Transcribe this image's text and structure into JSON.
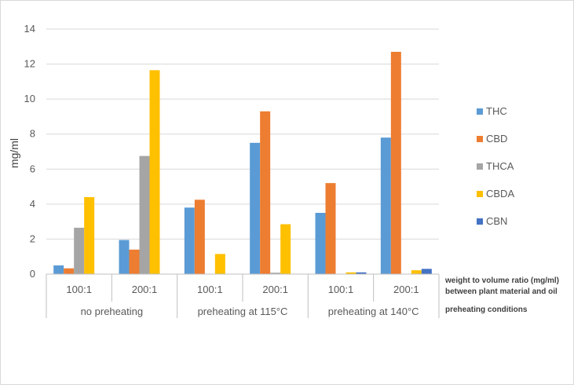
{
  "chart_data": {
    "type": "bar",
    "ylabel": "mg/ml",
    "ylim": [
      0,
      14
    ],
    "yticks": [
      0,
      2,
      4,
      6,
      8,
      10,
      12,
      14
    ],
    "ratio_label_line1": "weight to volume ratio (mg/ml)",
    "ratio_label_line2": "between plant material and oil",
    "condition_axis_label": "preheating conditions",
    "groups": [
      {
        "name": "no preheating",
        "categories": [
          "100:1",
          "200:1"
        ]
      },
      {
        "name": "preheating at 115°C",
        "categories": [
          "100:1",
          "200:1"
        ]
      },
      {
        "name": "preheating at 140°C",
        "categories": [
          "100:1",
          "200:1"
        ]
      }
    ],
    "series": [
      {
        "name": "THC",
        "color": "#5b9bd5",
        "values": [
          0.5,
          1.95,
          3.8,
          7.5,
          3.5,
          7.8
        ]
      },
      {
        "name": "CBD",
        "color": "#ed7d31",
        "values": [
          0.33,
          1.4,
          4.25,
          9.3,
          5.2,
          12.7
        ]
      },
      {
        "name": "THCA",
        "color": "#a5a5a5",
        "values": [
          2.65,
          6.75,
          0,
          0.08,
          0,
          0
        ]
      },
      {
        "name": "CBDA",
        "color": "#ffc000",
        "values": [
          4.4,
          11.65,
          1.15,
          2.85,
          0.1,
          0.22
        ]
      },
      {
        "name": "CBN",
        "color": "#4472c4",
        "values": [
          0,
          0,
          0,
          0,
          0.1,
          0.3
        ]
      }
    ]
  }
}
